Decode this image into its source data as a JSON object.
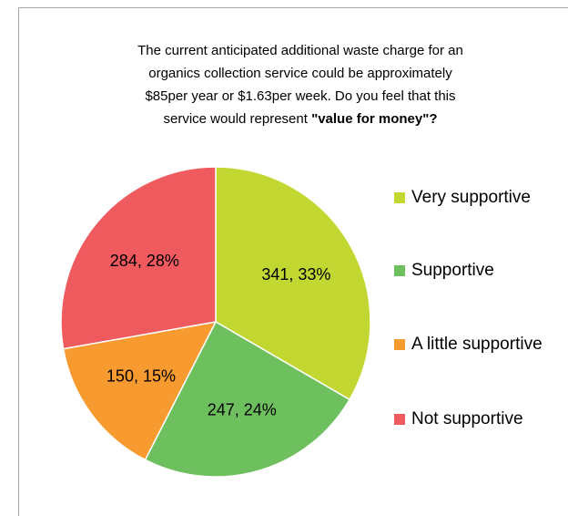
{
  "chart_data": {
    "type": "pie",
    "title": [
      "The current anticipated additional waste charge for an",
      "organics collection service could be approximately",
      "$85per year or $1.63per week. Do you feel that this",
      "service would represent "
    ],
    "title_bold": "\"value for money\"?",
    "categories": [
      "Very supportive",
      "Supportive",
      "A little supportive",
      "Not supportive"
    ],
    "values": [
      341,
      247,
      150,
      284
    ],
    "value_labels": [
      "341, 33%",
      "247, 24%",
      "150, 15%",
      "284, 28%"
    ],
    "colors": [
      "#c3d733",
      "#6ebf5e",
      "#f79a2f",
      "#ee5a5e"
    ],
    "legend": "right"
  }
}
